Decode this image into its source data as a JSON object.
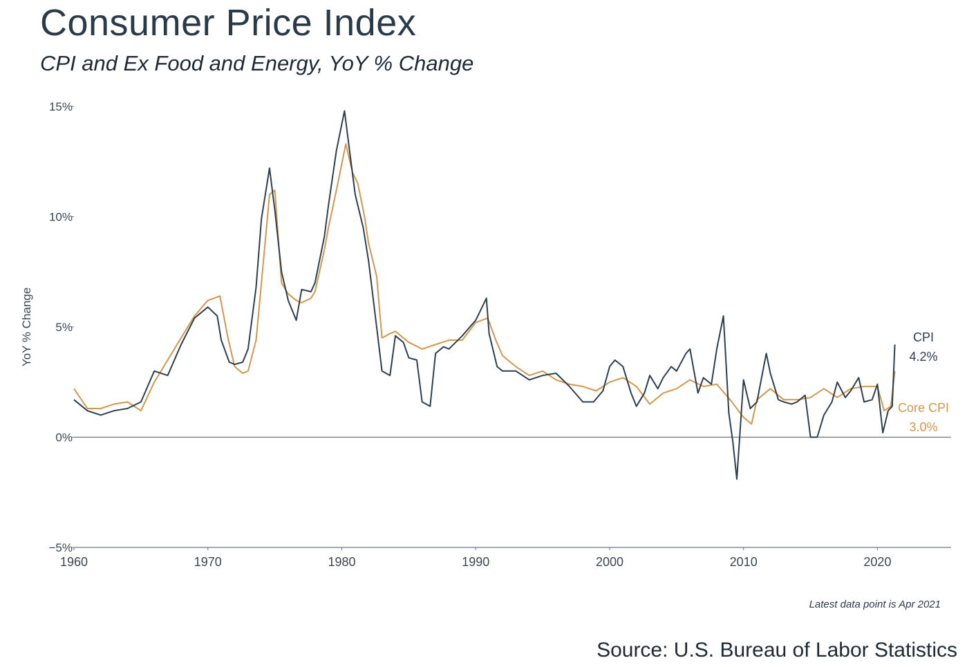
{
  "title": "Consumer Price Index",
  "subtitle": "CPI and Ex Food and Energy, YoY % Change",
  "note": "Latest data point is Apr 2021",
  "source": "Source: U.S. Bureau of Labor Statistics",
  "chart_data": {
    "type": "line",
    "ylabel": "YoY % Change",
    "xlabel": "",
    "xlim": [
      1960,
      2025.5
    ],
    "ylim": [
      -5,
      15
    ],
    "x_ticks": [
      1960,
      1970,
      1980,
      1990,
      2000,
      2010,
      2020
    ],
    "x_tick_labels": [
      "1960",
      "1970",
      "1980",
      "1990",
      "2000",
      "2010",
      "2020"
    ],
    "y_ticks": [
      -5,
      0,
      5,
      10,
      15
    ],
    "y_tick_labels": [
      "−5%",
      "0%",
      "5%",
      "10%",
      "15%"
    ],
    "zero_line": true,
    "series": [
      {
        "name": "CPI",
        "end_label": "4.2%",
        "color": "#2c3e50",
        "x": [
          1960,
          1961,
          1962,
          1963,
          1964,
          1965,
          1966,
          1967,
          1968,
          1969,
          1970,
          1970.7,
          1971,
          1971.6,
          1972,
          1972.6,
          1973,
          1973.6,
          1974,
          1974.6,
          1975,
          1975.5,
          1976,
          1976.6,
          1977,
          1977.7,
          1978,
          1978.7,
          1979,
          1979.6,
          1980.2,
          1980.6,
          1981,
          1981.6,
          1982,
          1982.6,
          1983,
          1983.6,
          1984,
          1984.6,
          1985,
          1985.6,
          1986,
          1986.6,
          1987,
          1987.6,
          1988,
          1989,
          1990,
          1990.8,
          1991,
          1991.6,
          1992,
          1993,
          1994,
          1995,
          1996,
          1997,
          1998,
          1998.8,
          1999.5,
          2000,
          2000.4,
          2001,
          2001.6,
          2002,
          2002.6,
          2003,
          2003.6,
          2004,
          2004.6,
          2005,
          2005.7,
          2006,
          2006.6,
          2007,
          2007.6,
          2008,
          2008.5,
          2008.9,
          2009.2,
          2009.5,
          2010,
          2010.5,
          2011,
          2011.7,
          2012,
          2012.6,
          2013,
          2013.6,
          2014,
          2014.6,
          2015,
          2015.5,
          2016,
          2016.6,
          2017,
          2017.6,
          2018,
          2018.6,
          2019,
          2019.6,
          2020,
          2020.4,
          2020.8,
          2021.1,
          2021.3
        ],
        "y": [
          1.7,
          1.2,
          1.0,
          1.2,
          1.3,
          1.6,
          3.0,
          2.8,
          4.2,
          5.4,
          5.9,
          5.5,
          4.4,
          3.4,
          3.3,
          3.4,
          4.0,
          6.8,
          9.9,
          12.2,
          10.3,
          7.5,
          6.2,
          5.3,
          6.7,
          6.6,
          7.0,
          9.1,
          10.5,
          13.0,
          14.8,
          12.9,
          11.0,
          9.5,
          8.0,
          5.0,
          3.0,
          2.8,
          4.6,
          4.3,
          3.6,
          3.5,
          1.6,
          1.4,
          3.8,
          4.1,
          4.0,
          4.6,
          5.3,
          6.3,
          4.7,
          3.2,
          3.0,
          3.0,
          2.6,
          2.8,
          2.9,
          2.3,
          1.6,
          1.6,
          2.1,
          3.2,
          3.5,
          3.2,
          2.0,
          1.4,
          2.0,
          2.8,
          2.2,
          2.7,
          3.2,
          3.0,
          3.8,
          4.0,
          2.0,
          2.7,
          2.4,
          4.0,
          5.5,
          1.1,
          -0.2,
          -1.9,
          2.6,
          1.3,
          1.6,
          3.8,
          2.9,
          1.7,
          1.6,
          1.5,
          1.6,
          1.9,
          0.0,
          0.0,
          1.0,
          1.6,
          2.5,
          1.8,
          2.1,
          2.7,
          1.6,
          1.7,
          2.4,
          0.2,
          1.2,
          1.4,
          4.2
        ]
      },
      {
        "name": "Core CPI",
        "end_label": "3.0%",
        "color": "#d4964a",
        "x": [
          1960,
          1961,
          1962,
          1963,
          1964,
          1965,
          1966,
          1967,
          1968,
          1969,
          1970,
          1970.9,
          1971.5,
          1972,
          1972.6,
          1973,
          1973.6,
          1974,
          1974.6,
          1975,
          1975.5,
          1976,
          1976.6,
          1977,
          1977.7,
          1978,
          1978.7,
          1979,
          1979.6,
          1980.3,
          1980.8,
          1981.2,
          1981.7,
          1982,
          1982.6,
          1983,
          1983.6,
          1984,
          1985,
          1986,
          1987,
          1988,
          1989,
          1990,
          1990.9,
          1991.5,
          1992,
          1993,
          1994,
          1995,
          1996,
          1997,
          1998,
          1999,
          2000,
          2001,
          2002,
          2003,
          2004,
          2005,
          2006,
          2007,
          2008,
          2009,
          2010,
          2010.6,
          2011,
          2012,
          2013,
          2014,
          2015,
          2016,
          2017,
          2018,
          2019,
          2020,
          2020.5,
          2021,
          2021.3
        ],
        "y": [
          2.2,
          1.3,
          1.3,
          1.5,
          1.6,
          1.2,
          2.5,
          3.5,
          4.5,
          5.5,
          6.2,
          6.4,
          4.5,
          3.2,
          2.9,
          3.0,
          4.4,
          7.0,
          11.0,
          11.2,
          7.0,
          6.5,
          6.2,
          6.1,
          6.3,
          6.6,
          8.5,
          9.5,
          11.2,
          13.3,
          12.0,
          11.5,
          10.0,
          8.8,
          7.3,
          4.5,
          4.7,
          4.8,
          4.3,
          4.0,
          4.2,
          4.4,
          4.4,
          5.2,
          5.4,
          4.4,
          3.7,
          3.2,
          2.8,
          3.0,
          2.6,
          2.4,
          2.3,
          2.1,
          2.5,
          2.7,
          2.3,
          1.5,
          2.0,
          2.2,
          2.6,
          2.3,
          2.4,
          1.7,
          0.9,
          0.6,
          1.7,
          2.2,
          1.7,
          1.7,
          1.8,
          2.2,
          1.8,
          2.2,
          2.3,
          2.3,
          1.2,
          1.4,
          3.0
        ]
      }
    ]
  }
}
